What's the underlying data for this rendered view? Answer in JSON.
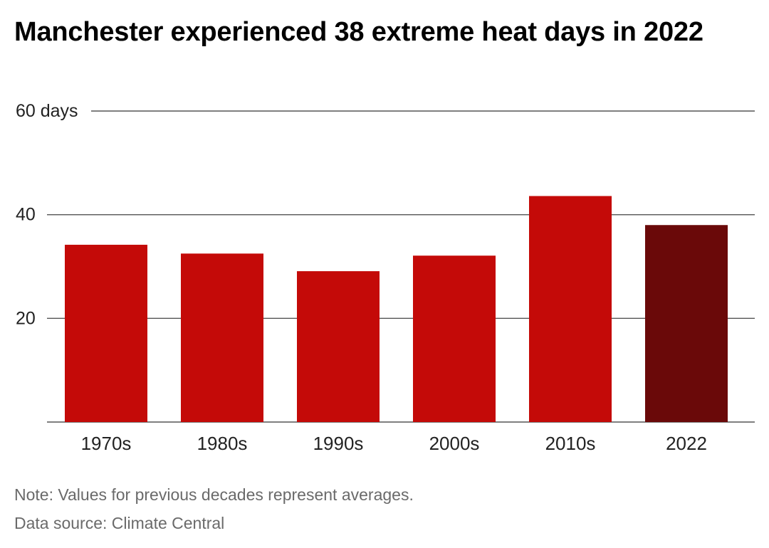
{
  "title": "Manchester experienced 38 extreme heat days in 2022",
  "note": "Note: Values for previous decades represent averages.",
  "source": "Data source: Climate Central",
  "chart_data": {
    "type": "bar",
    "title": "Manchester experienced 38 extreme heat days in 2022",
    "xlabel": "",
    "ylabel": "",
    "categories": [
      "1970s",
      "1980s",
      "1990s",
      "2000s",
      "2010s",
      "2022"
    ],
    "values": [
      34.2,
      32.5,
      29.1,
      32.1,
      43.6,
      38.0
    ],
    "ylim": [
      0,
      60
    ],
    "yticks": [
      {
        "value": 20,
        "label": "20"
      },
      {
        "value": 40,
        "label": "40"
      },
      {
        "value": 60,
        "label": "60 days"
      }
    ],
    "grid": true,
    "legend": "none",
    "colors": {
      "default": "#c40a08",
      "highlight": "#6a0909",
      "highlight_category": "2022",
      "gridline": "#555555",
      "axis_text": "#222222"
    }
  }
}
